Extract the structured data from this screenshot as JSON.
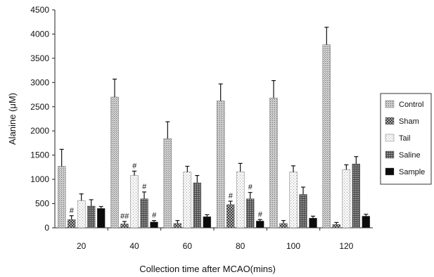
{
  "chart_data": {
    "type": "bar",
    "title": "",
    "xlabel": "Collection time after MCAO(mins)",
    "ylabel": "Alanine (μM)",
    "ylim": [
      0,
      4500
    ],
    "yticks": [
      "0",
      "500",
      "1000",
      "1500",
      "2000",
      "2500",
      "3000",
      "3500",
      "4000",
      "4500"
    ],
    "categories": [
      "20",
      "40",
      "60",
      "80",
      "100",
      "120"
    ],
    "legend_position": "right",
    "series": [
      {
        "name": "Control",
        "pattern": "dense-dots",
        "values": [
          1270,
          2700,
          1840,
          2620,
          2680,
          3780
        ],
        "errors": [
          350,
          370,
          350,
          350,
          360,
          360
        ]
      },
      {
        "name": "Sham",
        "pattern": "checker",
        "values": [
          170,
          80,
          90,
          480,
          90,
          70
        ],
        "errors": [
          80,
          50,
          60,
          70,
          60,
          40
        ]
      },
      {
        "name": "Tail",
        "pattern": "sparse-dots",
        "values": [
          560,
          1080,
          1150,
          1160,
          1150,
          1200
        ],
        "errors": [
          140,
          90,
          120,
          170,
          130,
          100
        ]
      },
      {
        "name": "Saline",
        "pattern": "grid",
        "values": [
          450,
          600,
          930,
          600,
          690,
          1320
        ],
        "errors": [
          130,
          140,
          150,
          130,
          150,
          150
        ]
      },
      {
        "name": "Sample",
        "pattern": "solid",
        "values": [
          400,
          120,
          230,
          140,
          200,
          240
        ],
        "errors": [
          40,
          30,
          40,
          30,
          40,
          40
        ]
      }
    ],
    "annotations": [
      {
        "category": "20",
        "series": "Sham",
        "text": "#"
      },
      {
        "category": "40",
        "series": "Sham",
        "text": "##"
      },
      {
        "category": "40",
        "series": "Tail",
        "text": "#"
      },
      {
        "category": "40",
        "series": "Saline",
        "text": "#"
      },
      {
        "category": "40",
        "series": "Sample",
        "text": "#"
      },
      {
        "category": "80",
        "series": "Sham",
        "text": "#"
      },
      {
        "category": "80",
        "series": "Saline",
        "text": "#"
      },
      {
        "category": "80",
        "series": "Sample",
        "text": "#"
      }
    ]
  }
}
